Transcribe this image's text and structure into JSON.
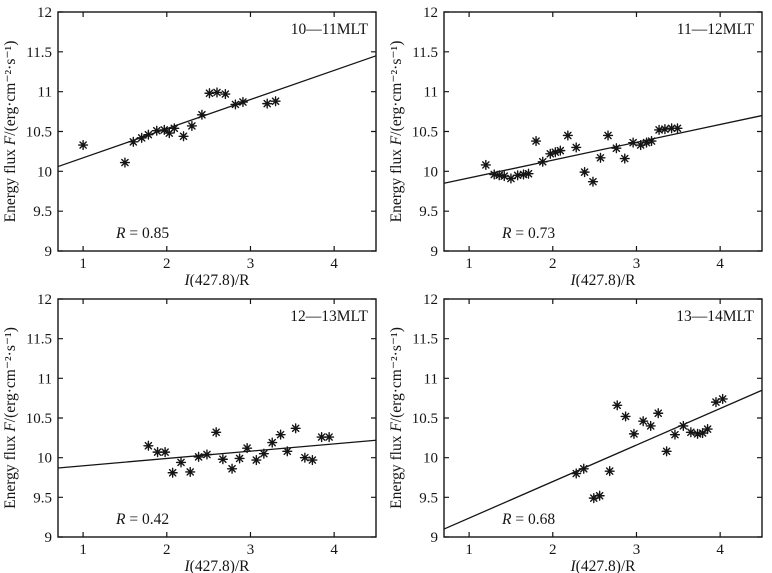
{
  "figure": {
    "background": "#ffffff",
    "ink_color": "#151515",
    "xlabel": "I(427.8)/R",
    "ylabel": "Energy flux F/(erg·cm⁻²·s⁻¹)"
  },
  "axis": {
    "xlim": [
      0.7,
      4.5
    ],
    "ylim": [
      9,
      12
    ],
    "xticks": [
      1,
      2,
      3,
      4
    ],
    "xtick_labels": [
      "1",
      "2",
      "3",
      "4"
    ],
    "yticks": [
      9,
      9.5,
      10,
      10.5,
      11,
      11.5,
      12
    ],
    "ytick_labels": [
      "9",
      "9.5",
      "10",
      "10.5",
      "11",
      "11.5",
      "12"
    ],
    "grid": false,
    "box": true,
    "xlabel_parts": [
      {
        "text": "I",
        "italic": true
      },
      {
        "text": "(427.8)/R",
        "italic": false
      }
    ],
    "ylabel_parts": [
      {
        "text": "Energy flux ",
        "italic": false
      },
      {
        "text": "F",
        "italic": true
      },
      {
        "text": "/(erg·cm⁻²·s⁻¹)",
        "italic": false
      }
    ]
  },
  "chart_data": [
    {
      "type": "scatter",
      "panel_label": "10—11MLT",
      "r_text": "R = 0.85",
      "r_parts": [
        {
          "text": "R",
          "italic": true
        },
        {
          "text": " = 0.85",
          "italic": false
        }
      ],
      "xlabel": "I(427.8)/R",
      "ylabel": "Energy flux F/(erg·cm⁻²·s⁻¹)",
      "xlim": [
        0.7,
        4.5
      ],
      "ylim": [
        9,
        12
      ],
      "x": [
        1.0,
        1.5,
        1.6,
        1.7,
        1.78,
        1.88,
        1.97,
        2.03,
        2.09,
        2.2,
        2.3,
        2.42,
        2.51,
        2.6,
        2.7,
        2.82,
        2.91,
        3.2,
        3.3
      ],
      "y": [
        10.33,
        10.11,
        10.37,
        10.42,
        10.46,
        10.51,
        10.52,
        10.48,
        10.54,
        10.44,
        10.57,
        10.71,
        10.98,
        10.99,
        10.97,
        10.84,
        10.87,
        10.85,
        10.88
      ],
      "fit_line": {
        "x": [
          0.7,
          4.5
        ],
        "y": [
          10.06,
          11.45
        ]
      }
    },
    {
      "type": "scatter",
      "panel_label": "11—12MLT",
      "r_text": "R = 0.73",
      "r_parts": [
        {
          "text": "R",
          "italic": true
        },
        {
          "text": " = 0.73",
          "italic": false
        }
      ],
      "xlabel": "I(427.8)/R",
      "ylabel": "Energy flux F/(erg·cm⁻²·s⁻¹)",
      "xlim": [
        0.7,
        4.5
      ],
      "ylim": [
        9,
        12
      ],
      "x": [
        1.2,
        1.3,
        1.36,
        1.42,
        1.5,
        1.58,
        1.65,
        1.71,
        1.8,
        1.88,
        1.97,
        2.03,
        2.09,
        2.18,
        2.28,
        2.38,
        2.48,
        2.57,
        2.66,
        2.76,
        2.86,
        2.96,
        3.05,
        3.12,
        3.18,
        3.27,
        3.34,
        3.42,
        3.49
      ],
      "y": [
        10.08,
        9.96,
        9.95,
        9.94,
        9.91,
        9.95,
        9.96,
        9.97,
        10.38,
        10.12,
        10.22,
        10.24,
        10.26,
        10.45,
        10.3,
        9.99,
        9.87,
        10.17,
        10.45,
        10.29,
        10.16,
        10.36,
        10.33,
        10.36,
        10.38,
        10.52,
        10.53,
        10.54,
        10.54
      ],
      "fit_line": {
        "x": [
          0.7,
          4.5
        ],
        "y": [
          9.85,
          10.7
        ]
      }
    },
    {
      "type": "scatter",
      "panel_label": "12—13MLT",
      "r_text": "R = 0.42",
      "r_parts": [
        {
          "text": "R",
          "italic": true
        },
        {
          "text": " = 0.42",
          "italic": false
        }
      ],
      "xlabel": "I(427.8)/R",
      "ylabel": "Energy flux F/(erg·cm⁻²·s⁻¹)",
      "xlim": [
        0.7,
        4.5
      ],
      "ylim": [
        9,
        12
      ],
      "x": [
        1.78,
        1.89,
        1.98,
        2.07,
        2.17,
        2.28,
        2.38,
        2.48,
        2.59,
        2.67,
        2.78,
        2.87,
        2.96,
        3.07,
        3.16,
        3.26,
        3.36,
        3.44,
        3.54,
        3.65,
        3.74,
        3.85,
        3.94
      ],
      "y": [
        10.15,
        10.07,
        10.07,
        9.81,
        9.94,
        9.82,
        10.01,
        10.04,
        10.32,
        9.98,
        9.86,
        9.99,
        10.12,
        9.97,
        10.05,
        10.19,
        10.29,
        10.08,
        10.37,
        10.0,
        9.97,
        10.26,
        10.26
      ],
      "fit_line": {
        "x": [
          0.7,
          4.5
        ],
        "y": [
          9.87,
          10.22
        ]
      }
    },
    {
      "type": "scatter",
      "panel_label": "13—14MLT",
      "r_text": "R = 0.68",
      "r_parts": [
        {
          "text": "R",
          "italic": true
        },
        {
          "text": " = 0.68",
          "italic": false
        }
      ],
      "xlabel": "I(427.8)/R",
      "ylabel": "Energy flux F/(erg·cm⁻²·s⁻¹)",
      "xlim": [
        0.7,
        4.5
      ],
      "ylim": [
        9,
        12
      ],
      "x": [
        2.28,
        2.37,
        2.49,
        2.56,
        2.68,
        2.77,
        2.87,
        2.97,
        3.08,
        3.17,
        3.26,
        3.36,
        3.46,
        3.56,
        3.65,
        3.73,
        3.79,
        3.85,
        3.95,
        4.03
      ],
      "y": [
        9.8,
        9.86,
        9.49,
        9.52,
        9.83,
        10.66,
        10.52,
        10.3,
        10.46,
        10.4,
        10.56,
        10.08,
        10.29,
        10.4,
        10.32,
        10.3,
        10.31,
        10.36,
        10.7,
        10.74
      ],
      "fit_line": {
        "x": [
          0.7,
          4.5
        ],
        "y": [
          9.1,
          10.85
        ]
      }
    }
  ]
}
